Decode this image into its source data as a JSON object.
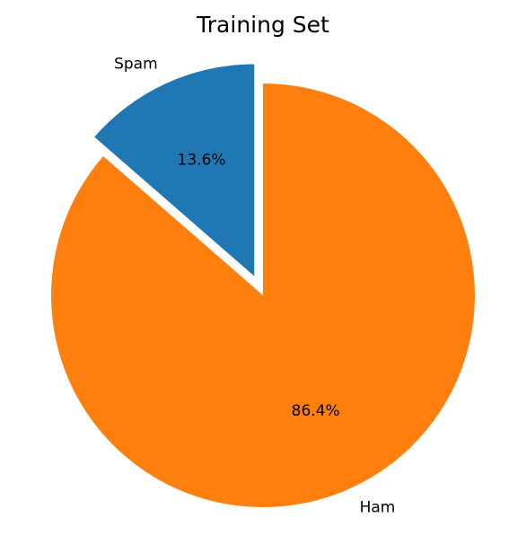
{
  "chart_data": {
    "type": "pie",
    "title": "Training Set",
    "categories": [
      "Spam",
      "Ham"
    ],
    "values": [
      13.6,
      86.4
    ],
    "value_labels": [
      "13.6%",
      "86.4%"
    ],
    "colors": [
      "#1f77b4",
      "#ff7f0e"
    ],
    "exploded": [
      "Spam"
    ],
    "start_angle_deg": 90,
    "direction": "counterclockwise"
  }
}
